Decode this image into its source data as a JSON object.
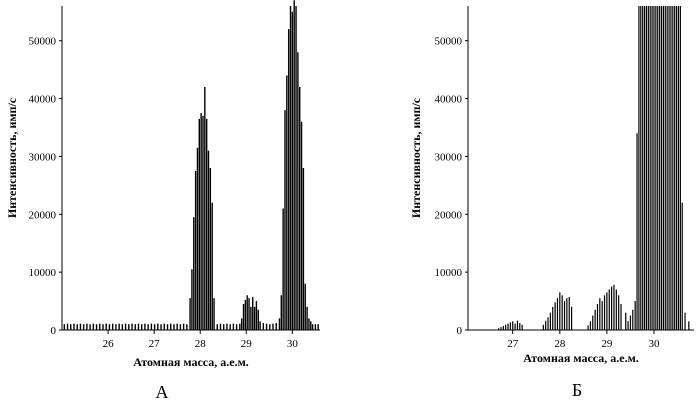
{
  "chart_data": [
    {
      "type": "bar",
      "panel_label": "А",
      "xlabel": "Атомная масса, а.е.м.",
      "ylabel": "Интенсивность, имп/с",
      "xlim": [
        25.0,
        30.6
      ],
      "ylim": [
        0,
        56000
      ],
      "x_ticks": [
        "26",
        "27",
        "28",
        "29",
        "30"
      ],
      "y_ticks": [
        "0",
        "10000",
        "20000",
        "30000",
        "40000",
        "50000"
      ],
      "x": [
        25.05,
        25.12,
        25.19,
        25.26,
        25.33,
        25.4,
        25.47,
        25.54,
        25.61,
        25.68,
        25.75,
        25.82,
        25.89,
        25.96,
        26.03,
        26.1,
        26.17,
        26.24,
        26.31,
        26.38,
        26.45,
        26.52,
        26.59,
        26.66,
        26.73,
        26.8,
        26.87,
        26.94,
        27.01,
        27.08,
        27.15,
        27.22,
        27.29,
        27.36,
        27.43,
        27.5,
        27.57,
        27.64,
        27.71,
        27.78,
        27.82,
        27.86,
        27.9,
        27.94,
        27.98,
        28.02,
        28.06,
        28.1,
        28.14,
        28.18,
        28.22,
        28.26,
        28.3,
        28.37,
        28.44,
        28.51,
        28.58,
        28.65,
        28.72,
        28.79,
        28.86,
        28.9,
        28.94,
        28.98,
        29.02,
        29.06,
        29.1,
        29.14,
        29.18,
        29.22,
        29.26,
        29.3,
        29.37,
        29.44,
        29.51,
        29.58,
        29.65,
        29.72,
        29.76,
        29.8,
        29.84,
        29.88,
        29.92,
        29.96,
        30.0,
        30.04,
        30.08,
        30.12,
        30.16,
        30.2,
        30.24,
        30.28,
        30.32,
        30.36,
        30.4,
        30.44,
        30.5,
        30.56
      ],
      "values": [
        1000,
        1100,
        1000,
        1100,
        1000,
        1100,
        1000,
        1100,
        1000,
        1100,
        1000,
        1100,
        1000,
        1100,
        1000,
        1100,
        1000,
        1100,
        1000,
        1100,
        1000,
        1100,
        1000,
        1100,
        1000,
        1100,
        1000,
        1100,
        1000,
        1100,
        1000,
        1100,
        1000,
        1100,
        1000,
        1100,
        1000,
        1100,
        1000,
        5500,
        10500,
        19500,
        27500,
        31500,
        36500,
        37500,
        37000,
        42000,
        36500,
        31000,
        28000,
        22000,
        5500,
        1000,
        1100,
        1000,
        1100,
        1000,
        1100,
        1000,
        1100,
        2000,
        4500,
        5200,
        6000,
        5500,
        4000,
        5700,
        4000,
        5000,
        3500,
        1500,
        1200,
        1100,
        1000,
        1100,
        1200,
        2000,
        6000,
        21000,
        38000,
        44000,
        52000,
        56000,
        55000,
        57000,
        56000,
        48000,
        42000,
        36000,
        28000,
        8000,
        4000,
        2000,
        1500,
        1000,
        1000,
        1000
      ]
    },
    {
      "type": "bar",
      "panel_label": "Б",
      "xlabel": "Атомная масса, а.е.м.",
      "ylabel": "Интенсивность, имп/с",
      "xlim": [
        26.05,
        30.85
      ],
      "ylim": [
        0,
        56000
      ],
      "x_ticks": [
        "27",
        "28",
        "29",
        "30"
      ],
      "y_ticks": [
        "0",
        "10000",
        "20000",
        "30000",
        "40000",
        "50000"
      ],
      "x": [
        26.7,
        26.75,
        26.8,
        26.85,
        26.9,
        26.95,
        27.0,
        27.05,
        27.1,
        27.15,
        27.2,
        27.65,
        27.7,
        27.75,
        27.8,
        27.85,
        27.9,
        27.95,
        28.0,
        28.05,
        28.1,
        28.15,
        28.2,
        28.25,
        28.6,
        28.65,
        28.7,
        28.75,
        28.8,
        28.85,
        28.9,
        28.95,
        29.0,
        29.05,
        29.1,
        29.15,
        29.2,
        29.25,
        29.3,
        29.4,
        29.45,
        29.5,
        29.55,
        29.6,
        29.64,
        29.68,
        29.72,
        29.76,
        29.8,
        29.84,
        29.88,
        29.92,
        29.96,
        30.0,
        30.04,
        30.08,
        30.12,
        30.16,
        30.2,
        30.24,
        30.28,
        30.32,
        30.36,
        30.4,
        30.44,
        30.48,
        30.52,
        30.56,
        30.6,
        30.66,
        30.74
      ],
      "values": [
        300,
        500,
        700,
        900,
        1100,
        1300,
        1500,
        1100,
        1600,
        1200,
        900,
        900,
        1600,
        2200,
        3000,
        4000,
        4800,
        5500,
        6500,
        6000,
        5000,
        5500,
        5700,
        4000,
        800,
        1500,
        2500,
        3500,
        4500,
        5500,
        5000,
        6000,
        6500,
        7000,
        7500,
        7800,
        7000,
        6000,
        4500,
        3000,
        1500,
        2500,
        3500,
        5000,
        34000,
        56000,
        56000,
        56000,
        56000,
        56000,
        56000,
        56000,
        56000,
        56000,
        56000,
        56000,
        56000,
        56000,
        56000,
        56000,
        56000,
        56000,
        56000,
        56000,
        56000,
        56000,
        56000,
        56000,
        22000,
        3000,
        1500
      ]
    }
  ]
}
